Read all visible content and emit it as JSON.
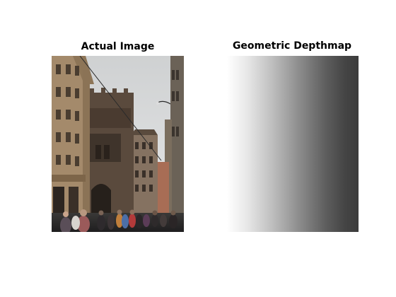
{
  "panels": {
    "left_title": "Actual Image",
    "right_title": "Geometric Depthmap"
  },
  "colors": {
    "background": "#ffffff",
    "sky": "#dcdedf",
    "building_tan": "#a58a6a",
    "building_dark": "#4a3e34",
    "street": "#2b2a2b",
    "depth_near": "#ffffff",
    "depth_far": "#3c3c3c"
  },
  "icons": [
    "street-photo",
    "depth-gradient"
  ]
}
